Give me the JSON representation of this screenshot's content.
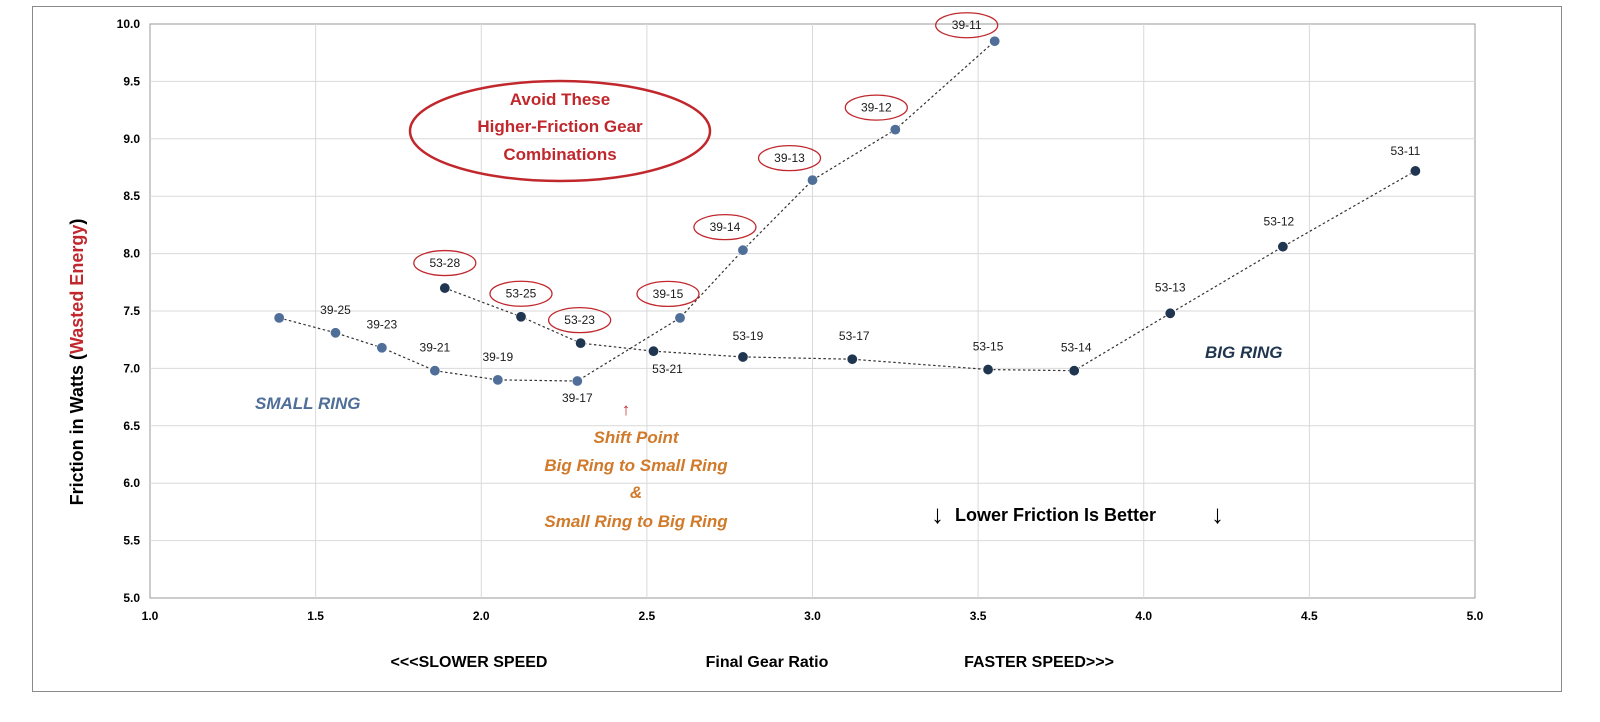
{
  "colors": {
    "small_ring": "#4f6e98",
    "big_ring": "#1f3550",
    "avoid_red": "#c0282d",
    "shift_orange": "#d07a2a"
  },
  "annotations": {
    "avoid_lines": [
      "Avoid These",
      "Higher-Friction Gear",
      "Combinations"
    ],
    "shift_arrow": "↑",
    "shift_lines": [
      "Shift Point",
      "Big Ring to Small Ring",
      "&",
      "Small Ring to Big Ring"
    ],
    "better_left_arrow": "↓",
    "better_text": "Lower Friction  Is Better",
    "better_right_arrow": "↓",
    "small_ring": "SMALL RING",
    "big_ring": "BIG RING"
  },
  "chart_data": {
    "type": "scatter",
    "title": "",
    "xlabel": "Final Gear Ratio",
    "xlabel_left": "<<<SLOWER SPEED",
    "xlabel_right": "FASTER SPEED>>>",
    "ylabel_prefix": "Friction in Watts (",
    "ylabel_highlight": "Wasted Energy",
    "ylabel_suffix": ")",
    "xlim": [
      1.0,
      5.0
    ],
    "ylim": [
      5.0,
      10.0
    ],
    "xticks": [
      "1.0",
      "1.5",
      "2.0",
      "2.5",
      "3.0",
      "3.5",
      "4.0",
      "4.5",
      "5.0"
    ],
    "yticks": [
      "5.0",
      "5.5",
      "6.0",
      "6.5",
      "7.0",
      "7.5",
      "8.0",
      "8.5",
      "9.0",
      "9.5",
      "10.0"
    ],
    "grid": true,
    "series": [
      {
        "name": "SMALL RING",
        "points": [
          {
            "label": "",
            "x": 1.39,
            "y": 7.44
          },
          {
            "label": "39-25",
            "x": 1.56,
            "y": 7.31
          },
          {
            "label": "39-23",
            "x": 1.7,
            "y": 7.18
          },
          {
            "label": "39-21",
            "x": 1.86,
            "y": 6.98
          },
          {
            "label": "39-19",
            "x": 2.05,
            "y": 6.9
          },
          {
            "label": "39-17",
            "x": 2.29,
            "y": 6.89
          },
          {
            "label": "39-15",
            "x": 2.6,
            "y": 7.44
          },
          {
            "label": "39-14",
            "x": 2.79,
            "y": 8.03
          },
          {
            "label": "39-13",
            "x": 3.0,
            "y": 8.64
          },
          {
            "label": "39-12",
            "x": 3.25,
            "y": 9.08
          },
          {
            "label": "39-11",
            "x": 3.55,
            "y": 9.85
          }
        ]
      },
      {
        "name": "BIG RING",
        "points": [
          {
            "label": "53-28",
            "x": 1.89,
            "y": 7.7
          },
          {
            "label": "53-25",
            "x": 2.12,
            "y": 7.45
          },
          {
            "label": "53-23",
            "x": 2.3,
            "y": 7.22
          },
          {
            "label": "53-21",
            "x": 2.52,
            "y": 7.15
          },
          {
            "label": "53-19",
            "x": 2.79,
            "y": 7.1
          },
          {
            "label": "53-17",
            "x": 3.12,
            "y": 7.08
          },
          {
            "label": "53-15",
            "x": 3.53,
            "y": 6.99
          },
          {
            "label": "53-14",
            "x": 3.79,
            "y": 6.98
          },
          {
            "label": "53-13",
            "x": 4.08,
            "y": 7.48
          },
          {
            "label": "53-12",
            "x": 4.42,
            "y": 8.06
          },
          {
            "label": "53-11",
            "x": 4.82,
            "y": 8.72
          }
        ]
      }
    ],
    "circled_labels": [
      "53-28",
      "53-25",
      "53-23",
      "39-15",
      "39-14",
      "39-13",
      "39-12",
      "39-11"
    ]
  }
}
